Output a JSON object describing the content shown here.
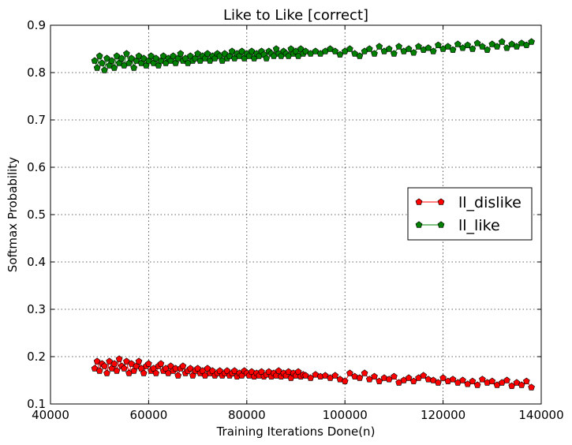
{
  "chart_data": {
    "type": "line",
    "title": "Like to Like [correct]",
    "xlabel": "Training Iterations Done(n)",
    "ylabel": "Softmax Probability",
    "xlim": [
      40000,
      140000
    ],
    "ylim": [
      0.1,
      0.9
    ],
    "xticks": [
      "40000",
      "60000",
      "80000",
      "100000",
      "120000",
      "140000"
    ],
    "yticks": [
      "0.1",
      "0.2",
      "0.3",
      "0.4",
      "0.5",
      "0.6",
      "0.7",
      "0.8",
      "0.9"
    ],
    "grid": true,
    "legend_position": "center-right",
    "series": [
      {
        "name": "ll_dislike",
        "color": "#ff0000",
        "marker": "pentagon",
        "x": [
          49000,
          49500,
          50000,
          50500,
          51000,
          51500,
          52000,
          52500,
          53000,
          53500,
          54000,
          54500,
          55000,
          55500,
          56000,
          56500,
          57000,
          57500,
          58000,
          58500,
          59000,
          59500,
          60000,
          60500,
          61000,
          61500,
          62000,
          62500,
          63000,
          63500,
          64000,
          64500,
          65000,
          65500,
          66000,
          66500,
          67000,
          67500,
          68000,
          68500,
          69000,
          69500,
          70000,
          70500,
          71000,
          71500,
          72000,
          72500,
          73000,
          73500,
          74000,
          74500,
          75000,
          75500,
          76000,
          76500,
          77000,
          77500,
          78000,
          78500,
          79000,
          79500,
          80000,
          80500,
          81000,
          81500,
          82000,
          82500,
          83000,
          83500,
          84000,
          84500,
          85000,
          85500,
          86000,
          86500,
          87000,
          87500,
          88000,
          88500,
          89000,
          89500,
          90000,
          90500,
          91000,
          91500,
          92000,
          93000,
          94000,
          95000,
          96000,
          97000,
          98000,
          99000,
          100000,
          101000,
          102000,
          103000,
          104000,
          105000,
          106000,
          107000,
          108000,
          109000,
          110000,
          111000,
          112000,
          113000,
          114000,
          115000,
          116000,
          117000,
          118000,
          119000,
          120000,
          121000,
          122000,
          123000,
          124000,
          125000,
          126000,
          127000,
          128000,
          129000,
          130000,
          131000,
          132000,
          133000,
          134000,
          135000,
          136000,
          137000,
          138000
        ],
        "y": [
          0.175,
          0.19,
          0.17,
          0.185,
          0.18,
          0.165,
          0.19,
          0.175,
          0.185,
          0.17,
          0.195,
          0.18,
          0.175,
          0.19,
          0.165,
          0.185,
          0.17,
          0.18,
          0.19,
          0.175,
          0.165,
          0.18,
          0.185,
          0.17,
          0.175,
          0.165,
          0.18,
          0.185,
          0.17,
          0.175,
          0.165,
          0.18,
          0.17,
          0.175,
          0.16,
          0.175,
          0.18,
          0.165,
          0.17,
          0.175,
          0.16,
          0.17,
          0.175,
          0.165,
          0.17,
          0.16,
          0.175,
          0.165,
          0.17,
          0.16,
          0.165,
          0.17,
          0.16,
          0.165,
          0.17,
          0.16,
          0.165,
          0.17,
          0.158,
          0.165,
          0.16,
          0.17,
          0.165,
          0.16,
          0.168,
          0.158,
          0.165,
          0.16,
          0.168,
          0.158,
          0.162,
          0.168,
          0.158,
          0.165,
          0.16,
          0.17,
          0.158,
          0.165,
          0.16,
          0.168,
          0.155,
          0.165,
          0.16,
          0.168,
          0.158,
          0.162,
          0.16,
          0.155,
          0.162,
          0.158,
          0.16,
          0.155,
          0.16,
          0.152,
          0.148,
          0.165,
          0.158,
          0.155,
          0.165,
          0.152,
          0.158,
          0.148,
          0.155,
          0.152,
          0.158,
          0.145,
          0.15,
          0.155,
          0.148,
          0.155,
          0.16,
          0.152,
          0.15,
          0.145,
          0.155,
          0.148,
          0.152,
          0.145,
          0.15,
          0.142,
          0.148,
          0.14,
          0.152,
          0.145,
          0.148,
          0.14,
          0.145,
          0.15,
          0.138,
          0.145,
          0.14,
          0.148,
          0.135
        ],
        "count_note": ""
      },
      {
        "name": "ll_like",
        "color": "#008000",
        "marker": "pentagon",
        "x": [
          49000,
          49500,
          50000,
          50500,
          51000,
          51500,
          52000,
          52500,
          53000,
          53500,
          54000,
          54500,
          55000,
          55500,
          56000,
          56500,
          57000,
          57500,
          58000,
          58500,
          59000,
          59500,
          60000,
          60500,
          61000,
          61500,
          62000,
          62500,
          63000,
          63500,
          64000,
          64500,
          65000,
          65500,
          66000,
          66500,
          67000,
          67500,
          68000,
          68500,
          69000,
          69500,
          70000,
          70500,
          71000,
          71500,
          72000,
          72500,
          73000,
          73500,
          74000,
          74500,
          75000,
          75500,
          76000,
          76500,
          77000,
          77500,
          78000,
          78500,
          79000,
          79500,
          80000,
          80500,
          81000,
          81500,
          82000,
          82500,
          83000,
          83500,
          84000,
          84500,
          85000,
          85500,
          86000,
          86500,
          87000,
          87500,
          88000,
          88500,
          89000,
          89500,
          90000,
          90500,
          91000,
          91500,
          92000,
          93000,
          94000,
          95000,
          96000,
          97000,
          98000,
          99000,
          100000,
          101000,
          102000,
          103000,
          104000,
          105000,
          106000,
          107000,
          108000,
          109000,
          110000,
          111000,
          112000,
          113000,
          114000,
          115000,
          116000,
          117000,
          118000,
          119000,
          120000,
          121000,
          122000,
          123000,
          124000,
          125000,
          126000,
          127000,
          128000,
          129000,
          130000,
          131000,
          132000,
          133000,
          134000,
          135000,
          136000,
          137000,
          138000
        ],
        "y": [
          0.825,
          0.81,
          0.835,
          0.82,
          0.805,
          0.83,
          0.815,
          0.825,
          0.81,
          0.835,
          0.82,
          0.83,
          0.815,
          0.84,
          0.82,
          0.83,
          0.81,
          0.825,
          0.835,
          0.82,
          0.83,
          0.815,
          0.825,
          0.835,
          0.82,
          0.83,
          0.815,
          0.825,
          0.835,
          0.82,
          0.83,
          0.825,
          0.835,
          0.82,
          0.83,
          0.84,
          0.825,
          0.83,
          0.82,
          0.835,
          0.825,
          0.83,
          0.84,
          0.825,
          0.835,
          0.83,
          0.84,
          0.825,
          0.835,
          0.83,
          0.84,
          0.835,
          0.825,
          0.84,
          0.83,
          0.835,
          0.845,
          0.83,
          0.84,
          0.835,
          0.845,
          0.83,
          0.84,
          0.835,
          0.845,
          0.83,
          0.84,
          0.835,
          0.845,
          0.838,
          0.83,
          0.845,
          0.84,
          0.835,
          0.85,
          0.84,
          0.835,
          0.845,
          0.84,
          0.835,
          0.85,
          0.84,
          0.845,
          0.835,
          0.85,
          0.84,
          0.845,
          0.84,
          0.845,
          0.84,
          0.845,
          0.85,
          0.845,
          0.838,
          0.845,
          0.85,
          0.84,
          0.835,
          0.845,
          0.85,
          0.84,
          0.855,
          0.845,
          0.85,
          0.84,
          0.855,
          0.845,
          0.85,
          0.842,
          0.855,
          0.848,
          0.852,
          0.845,
          0.858,
          0.85,
          0.855,
          0.848,
          0.86,
          0.852,
          0.858,
          0.85,
          0.862,
          0.855,
          0.848,
          0.86,
          0.855,
          0.865,
          0.852,
          0.86,
          0.855,
          0.862,
          0.858,
          0.865
        ],
        "count_note": ""
      }
    ]
  }
}
